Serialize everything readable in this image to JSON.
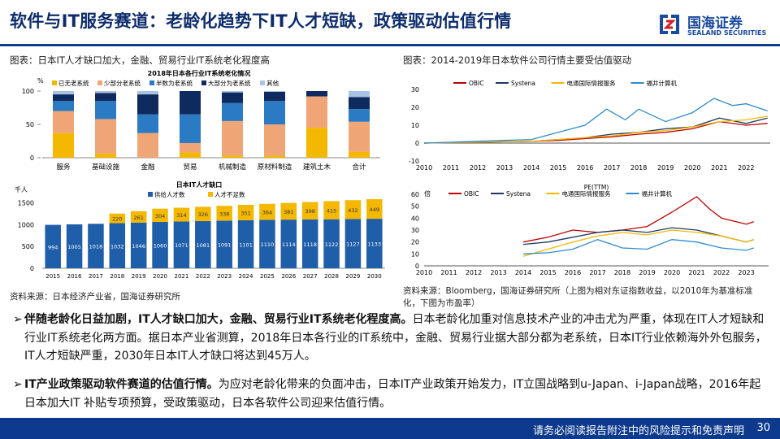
{
  "page": {
    "title": "软件与IT服务赛道：老龄化趋势下IT人才短缺，政策驱动估值行情",
    "logo_cn": "国海证券",
    "logo_en": "SEALAND SECURITIES",
    "footer_text": "请务必阅读报告附注中的风险提示和免责声明",
    "page_number": "30"
  },
  "left_caption": "图表：日本IT人才缺口加大，金融、贸易行业IT系统老化程度高",
  "right_caption": "图表：2014-2019年日本软件公司行情主要受估值驱动",
  "left_source": "资料来源：日本经济产业省，国海证券研究所",
  "right_source_line1": "资料来源：Bloomberg，国海证券研究所（上图为相对东证指数收益，以2010年为基准标准",
  "right_source_line2": "化，下图为市盈率）",
  "bullets": [
    {
      "lead": "伴随老龄化日益加剧，IT人才缺口加大，金融、贸易行业IT系统老化程度高。",
      "text": "日本老龄化加重对信息技术产业的冲击尤为严重，体现在IT人才短缺和行业IT系统老化两方面。据日本产业省测算，2018年日本各行业的IT系统中，金融、贸易行业据大部分都为老系统，日本IT行业依赖海外外包服务，IT人才短缺严重，2030年日本IT人才缺口将达到45万人。"
    },
    {
      "lead": "IT产业政策驱动软件赛道的估值行情。",
      "text": "为应对老龄化带来的负面冲击，日本IT产业政策开始发力，IT立国战略到u-Japan、i-Japan战略，2016年起日本加大IT 补贴专项预算，受政策驱动，日本各软件公司迎来估值行情。"
    }
  ],
  "chart_data": [
    {
      "type": "bar",
      "stacked": true,
      "title": "2018年日本各行业IT系统老化情况",
      "ylabel": "%",
      "ylim": [
        0,
        100
      ],
      "yticks": [
        "0",
        "50",
        "100"
      ],
      "categories": [
        "服务",
        "基础设施",
        "金融",
        "贸易",
        "机械制造",
        "原材料制造",
        "建筑土木",
        "合计"
      ],
      "series": [
        {
          "name": "已无老系统",
          "color": "#f5b800",
          "values": [
            37,
            6,
            0,
            8,
            3,
            3,
            45,
            9
          ]
        },
        {
          "name": "少部分老系统",
          "color": "#f0a577",
          "values": [
            33,
            52,
            37,
            14,
            52,
            47,
            47,
            45
          ]
        },
        {
          "name": "半数为老系统",
          "color": "#2a7bc4",
          "values": [
            15,
            27,
            28,
            43,
            27,
            35,
            0,
            19
          ]
        },
        {
          "name": "大部分为老系统",
          "color": "#0e2a5e",
          "values": [
            10,
            12,
            30,
            35,
            16,
            14,
            8,
            18
          ]
        },
        {
          "name": "其他",
          "color": "#a9c3e4",
          "values": [
            5,
            3,
            5,
            0,
            2,
            1,
            0,
            9
          ]
        }
      ]
    },
    {
      "type": "bar",
      "stacked": true,
      "title": "日本IT人才缺口",
      "ylabel": "千人",
      "ylim": [
        0,
        1600
      ],
      "yticks": [
        "0",
        "500",
        "1000",
        "1500"
      ],
      "categories": [
        "2015",
        "2016",
        "2017",
        "2018",
        "2019",
        "2020",
        "2021",
        "2022",
        "2023",
        "2024",
        "2025",
        "2026",
        "2027",
        "2028",
        "2029",
        "2030"
      ],
      "series": [
        {
          "name": "供给人才数",
          "color": "#1f5ea8",
          "values": [
            994,
            1005,
            1018,
            1032,
            1046,
            1060,
            1071,
            1081,
            1091,
            1101,
            1110,
            1114,
            1118,
            1122,
            1127,
            1133
          ]
        },
        {
          "name": "人才不足数",
          "color": "#f5b800",
          "values": [
            null,
            null,
            null,
            220,
            261,
            304,
            314,
            326,
            338,
            351,
            364,
            381,
            398,
            415,
            432,
            449
          ]
        }
      ]
    },
    {
      "type": "line",
      "title": "",
      "ylim": [
        -10,
        30
      ],
      "yticks": [
        "-10",
        "0",
        "10",
        "20",
        "30"
      ],
      "xticks": [
        "2010",
        "2011",
        "2012",
        "2013",
        "2014",
        "2015",
        "2016",
        "2017",
        "2018",
        "2019",
        "2020",
        "2021",
        "2022"
      ],
      "series": [
        {
          "name": "OBIC",
          "color": "#c00000",
          "x": [
            2010,
            2012,
            2014,
            2015,
            2016,
            2017,
            2018,
            2019,
            2020,
            2021,
            2022,
            2022.8
          ],
          "values": [
            0,
            0.5,
            1,
            1.5,
            2.5,
            3.5,
            5,
            6,
            8,
            12,
            10,
            11
          ]
        },
        {
          "name": "Systena",
          "color": "#1f3864",
          "x": [
            2010,
            2012,
            2014,
            2015,
            2016,
            2017,
            2018,
            2019,
            2020,
            2021,
            2022,
            2022.8
          ],
          "values": [
            0,
            0.5,
            1,
            2,
            3,
            5,
            6,
            8,
            9,
            14,
            11,
            14
          ]
        },
        {
          "name": "电通国际情报服务",
          "color": "#f5b800",
          "x": [
            2010,
            2012,
            2014,
            2015,
            2016,
            2017,
            2018,
            2019,
            2020,
            2021,
            2022,
            2022.8
          ],
          "values": [
            0,
            0.5,
            1,
            2,
            3,
            4,
            6,
            7,
            9,
            12,
            13,
            15
          ]
        },
        {
          "name": "福井计算机",
          "color": "#2e8bd0",
          "x": [
            2010,
            2012,
            2014,
            2015,
            2016,
            2016.8,
            2017.5,
            2018,
            2019,
            2020,
            2020.8,
            2021.5,
            2022,
            2022.8
          ],
          "values": [
            0,
            1,
            2,
            6,
            10,
            19,
            13,
            19,
            12,
            17,
            25,
            21,
            22,
            18
          ]
        }
      ]
    },
    {
      "type": "line",
      "title": "PE(TTM)",
      "ylabel": "倍",
      "ylim": [
        0,
        60
      ],
      "yticks": [
        "0",
        "10",
        "20",
        "30",
        "40",
        "50",
        "60"
      ],
      "xticks": [
        "2010",
        "2011",
        "2012",
        "2013",
        "2014",
        "2015",
        "2016",
        "2017",
        "2018",
        "2019",
        "2020",
        "2021",
        "2022",
        "2023"
      ],
      "series": [
        {
          "name": "OBIC",
          "color": "#c00000",
          "x": [
            2014,
            2015,
            2016,
            2017,
            2018,
            2019,
            2020,
            2021,
            2021.5,
            2022,
            2023,
            2023.3
          ],
          "values": [
            20,
            24,
            30,
            28,
            30,
            33,
            45,
            58,
            48,
            40,
            35,
            37
          ]
        },
        {
          "name": "Systena",
          "color": "#1f3864",
          "x": [
            2014,
            2015,
            2016,
            2017,
            2018,
            2019,
            2020,
            2021,
            2022,
            2023,
            2023.3
          ],
          "values": [
            18,
            20,
            24,
            28,
            30,
            28,
            32,
            30,
            25,
            20,
            22
          ]
        },
        {
          "name": "电通国际情报服务",
          "color": "#f5b800",
          "x": [
            2014,
            2015,
            2016,
            2017,
            2018,
            2019,
            2020,
            2021,
            2022,
            2023,
            2023.3
          ],
          "values": [
            8,
            14,
            20,
            25,
            28,
            26,
            30,
            28,
            25,
            20,
            22
          ]
        },
        {
          "name": "福井计算机",
          "color": "#2e8bd0",
          "x": [
            2014,
            2015,
            2016,
            2017,
            2018,
            2019,
            2020,
            2021,
            2022,
            2023,
            2023.3
          ],
          "values": [
            10,
            11,
            14,
            22,
            15,
            14,
            22,
            20,
            15,
            13,
            15
          ]
        }
      ]
    }
  ]
}
